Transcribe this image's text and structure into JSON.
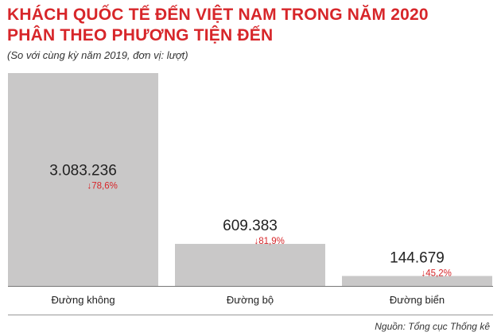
{
  "header": {
    "title_line1": "KHÁCH QUỐC TẾ ĐẾN VIỆT NAM TRONG NĂM 2020",
    "title_line2": "PHÂN THEO PHƯƠNG TIỆN ĐẾN",
    "subtitle": "(So với cùng kỳ năm 2019, đơn vị: lượt)"
  },
  "source": "Nguồn: Tổng cục Thống kê",
  "colors": {
    "title": "#d7262a",
    "bar": "#c9c8c8",
    "change": "#d7262a",
    "baseline": "#777777"
  },
  "chart_data": {
    "type": "bar",
    "title": "KHÁCH QUỐC TẾ ĐẾN VIỆT NAM TRONG NĂM 2020 PHÂN THEO PHƯƠNG TIỆN ĐẾN",
    "subtitle": "(So với cùng kỳ năm 2019, đơn vị: lượt)",
    "categories": [
      "Đường không",
      "Đường bộ",
      "Đường biển"
    ],
    "values": [
      3083236,
      609383,
      144679
    ],
    "value_labels": [
      "3.083.236",
      "609.383",
      "144.679"
    ],
    "changes": [
      "78,6%",
      "81,9%",
      "45,2%"
    ],
    "change_direction": [
      "down",
      "down",
      "down"
    ],
    "ylim": [
      0,
      3083236
    ],
    "grid": false,
    "legend": "none"
  }
}
